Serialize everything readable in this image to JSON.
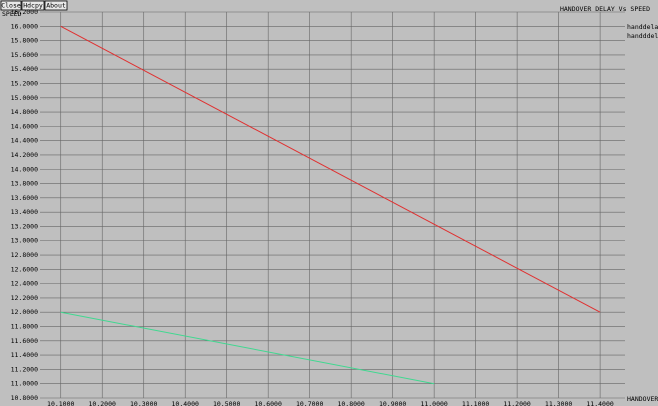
{
  "toolbar": {
    "buttons": [
      "Close",
      "Hdcpy",
      "About"
    ]
  },
  "chart_data": {
    "type": "line",
    "title": "HANDOVER DELAY Vs SPEED",
    "y_label": "SPEED",
    "x_label": "HANDOVER_D",
    "grid": true,
    "legend": "top-right",
    "series": [
      {
        "name": "handdelay.",
        "color": "#e03030",
        "x": [
          10.1,
          11.4
        ],
        "values": [
          16.0,
          12.0
        ]
      },
      {
        "name": "handddelay",
        "color": "#40d890",
        "x": [
          10.1,
          11.0
        ],
        "values": [
          12.0,
          11.0
        ]
      }
    ],
    "xlim": [
      10.05,
      11.46
    ],
    "ylim": [
      10.8,
      16.2
    ],
    "xticks": [
      {
        "value": 10.1,
        "label": "10.1000"
      },
      {
        "value": 10.2,
        "label": "10.2000"
      },
      {
        "value": 10.3,
        "label": "10.3000"
      },
      {
        "value": 10.4,
        "label": "10.4000"
      },
      {
        "value": 10.5,
        "label": "10.5000"
      },
      {
        "value": 10.6,
        "label": "10.6000"
      },
      {
        "value": 10.7,
        "label": "10.7000"
      },
      {
        "value": 10.8,
        "label": "10.8000"
      },
      {
        "value": 10.9,
        "label": "10.9000"
      },
      {
        "value": 11.0,
        "label": "11.0000"
      },
      {
        "value": 11.1,
        "label": "11.1000"
      },
      {
        "value": 11.2,
        "label": "11.2000"
      },
      {
        "value": 11.3,
        "label": "11.3000"
      },
      {
        "value": 11.4,
        "label": "11.4000"
      }
    ],
    "yticks": [
      {
        "value": 10.8,
        "label": "10.8000"
      },
      {
        "value": 11.0,
        "label": "11.0000"
      },
      {
        "value": 11.2,
        "label": "11.2000"
      },
      {
        "value": 11.4,
        "label": "11.4000"
      },
      {
        "value": 11.6,
        "label": "11.6000"
      },
      {
        "value": 11.8,
        "label": "11.8000"
      },
      {
        "value": 12.0,
        "label": "12.0000"
      },
      {
        "value": 12.2,
        "label": "12.2000"
      },
      {
        "value": 12.4,
        "label": "12.4000"
      },
      {
        "value": 12.6,
        "label": "12.6000"
      },
      {
        "value": 12.8,
        "label": "12.8000"
      },
      {
        "value": 13.0,
        "label": "13.0000"
      },
      {
        "value": 13.2,
        "label": "13.2000"
      },
      {
        "value": 13.4,
        "label": "13.4000"
      },
      {
        "value": 13.6,
        "label": "13.6000"
      },
      {
        "value": 13.8,
        "label": "13.8000"
      },
      {
        "value": 14.0,
        "label": "14.0000"
      },
      {
        "value": 14.2,
        "label": "14.2000"
      },
      {
        "value": 14.4,
        "label": "14.4000"
      },
      {
        "value": 14.6,
        "label": "14.6000"
      },
      {
        "value": 14.8,
        "label": "14.8000"
      },
      {
        "value": 15.0,
        "label": "15.0000"
      },
      {
        "value": 15.2,
        "label": "15.2000"
      },
      {
        "value": 15.4,
        "label": "15.4000"
      },
      {
        "value": 15.6,
        "label": "15.6000"
      },
      {
        "value": 15.8,
        "label": "15.8000"
      },
      {
        "value": 16.0,
        "label": "16.0000"
      },
      {
        "value": 16.2,
        "label": "16.2000"
      }
    ]
  }
}
